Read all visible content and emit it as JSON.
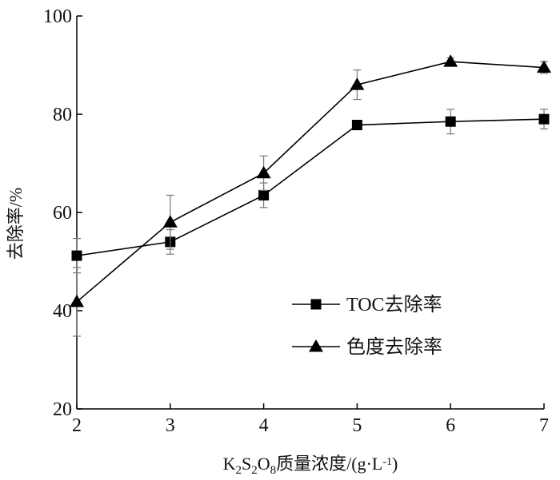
{
  "chart_data": {
    "type": "line",
    "title": "",
    "xlabel": {
      "parts": [
        {
          "text": "K",
          "sub": false
        },
        {
          "text": "2",
          "sub": true
        },
        {
          "text": "S",
          "sub": false
        },
        {
          "text": "2",
          "sub": true
        },
        {
          "text": "O",
          "sub": false
        },
        {
          "text": "8",
          "sub": true
        },
        {
          "text": "质量浓度/(g·L",
          "sub": false
        },
        {
          "text": "-1",
          "sup": true
        },
        {
          "text": ")",
          "sub": false
        }
      ]
    },
    "ylabel": "去除率/%",
    "xlim": [
      2,
      7
    ],
    "ylim": [
      20,
      100
    ],
    "x_ticks": [
      "2",
      "3",
      "4",
      "5",
      "6",
      "7"
    ],
    "y_ticks": [
      "20",
      "40",
      "60",
      "80",
      "100"
    ],
    "grid": false,
    "legend_position": "center-right",
    "series": [
      {
        "name": "TOC去除率",
        "marker": "square",
        "x": [
          2,
          3,
          4,
          5,
          6,
          7
        ],
        "y": [
          51.2,
          54.0,
          63.5,
          77.8,
          78.5,
          79.0
        ],
        "error": [
          3.5,
          2.5,
          2.5,
          0.8,
          2.5,
          2.0
        ]
      },
      {
        "name": "色度去除率",
        "marker": "triangle",
        "x": [
          2,
          3,
          4,
          5,
          6,
          7
        ],
        "y": [
          41.8,
          58.0,
          68.0,
          86.0,
          90.7,
          89.5
        ],
        "error": [
          7.0,
          5.5,
          3.5,
          3.0,
          0.8,
          1.2
        ]
      }
    ]
  }
}
